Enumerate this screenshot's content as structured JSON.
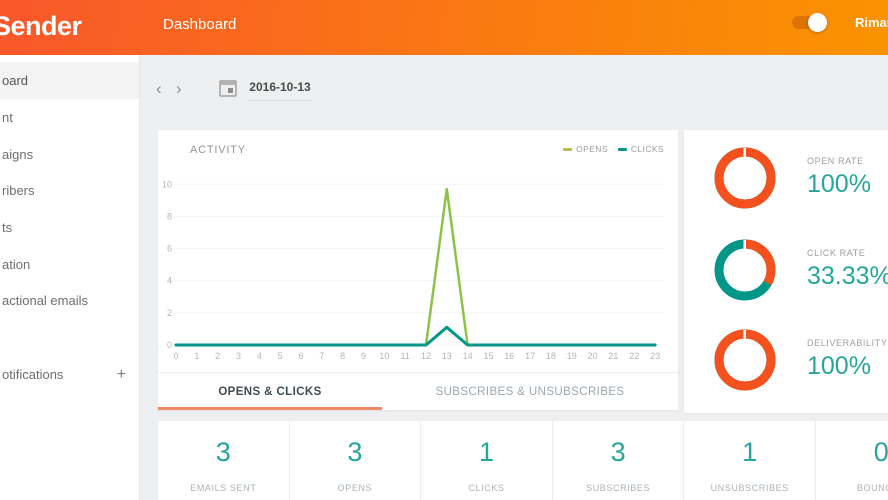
{
  "header": {
    "logo": "Sender",
    "title": "Dashboard",
    "user": "Riman",
    "toggle_on": true,
    "colors": {
      "gradient_left": "#f9572b",
      "gradient_right": "#fb9300",
      "toggle_track": "#dd7303"
    }
  },
  "sidebar": {
    "items": [
      {
        "label": "oard",
        "active": true
      },
      {
        "label": "nt",
        "active": false
      },
      {
        "label": "aigns",
        "active": false
      },
      {
        "label": "ribers",
        "active": false
      },
      {
        "label": "ts",
        "active": false
      },
      {
        "label": "ation",
        "active": false
      },
      {
        "label": "actional emails",
        "active": false
      },
      {
        "label": "otifications",
        "active": false,
        "plus": "+"
      }
    ]
  },
  "date_nav": {
    "prev_icon": "‹",
    "next_icon": "›",
    "date": "2016-10-13"
  },
  "chart_data": {
    "type": "line",
    "title": "ACTIVITY",
    "x": [
      0,
      1,
      2,
      3,
      4,
      5,
      6,
      7,
      8,
      9,
      10,
      11,
      12,
      13,
      14,
      15,
      16,
      17,
      18,
      19,
      20,
      21,
      22,
      23
    ],
    "series": [
      {
        "name": "OPENS",
        "color": "#8bc34a",
        "legend_color": "#b9bd4d",
        "values": [
          0,
          0,
          0,
          0,
          0,
          0,
          0,
          0,
          0,
          0,
          0,
          0,
          0,
          9.7,
          0,
          0,
          0,
          0,
          0,
          0,
          0,
          0,
          0,
          0
        ]
      },
      {
        "name": "CLICKS",
        "color": "#00968a",
        "legend_color": "#00968a",
        "values": [
          0,
          0,
          0,
          0,
          0,
          0,
          0,
          0,
          0,
          0,
          0,
          0,
          0,
          1.1,
          0,
          0,
          0,
          0,
          0,
          0,
          0,
          0,
          0,
          0
        ]
      }
    ],
    "ylim": [
      0,
      10
    ],
    "yticks": [
      0,
      2,
      4,
      6,
      8,
      10
    ],
    "grid": true,
    "legend_position": "top-right",
    "xlabel": "",
    "ylabel": ""
  },
  "tabs": [
    {
      "label": "OPENS & CLICKS",
      "active": true
    },
    {
      "label": "SUBSCRIBES & UNSUBSCRIBES",
      "active": false
    }
  ],
  "rates": {
    "metrics": [
      {
        "label": "OPEN RATE",
        "value": "100%",
        "percent": 100
      },
      {
        "label": "CLICK RATE",
        "value": "33.33%",
        "percent": 33.33
      },
      {
        "label": "DELIVERABILITY",
        "value": "100%",
        "percent": 100
      }
    ],
    "colors": {
      "ring_fill": "#f4511e",
      "ring_rest": "#009688",
      "value_text": "#26a69a"
    }
  },
  "stats": {
    "items": [
      {
        "value": "3",
        "label": "EMAILS SENT"
      },
      {
        "value": "3",
        "label": "OPENS"
      },
      {
        "value": "1",
        "label": "CLICKS"
      },
      {
        "value": "3",
        "label": "SUBSCRIBES"
      },
      {
        "value": "1",
        "label": "UNSUBSCRIBES"
      },
      {
        "value": "0",
        "label": "BOUNCES"
      }
    ]
  },
  "accent": {
    "tab_underline": "#ec8a63",
    "teal": "#26a69a",
    "orange": "#f4511e"
  }
}
